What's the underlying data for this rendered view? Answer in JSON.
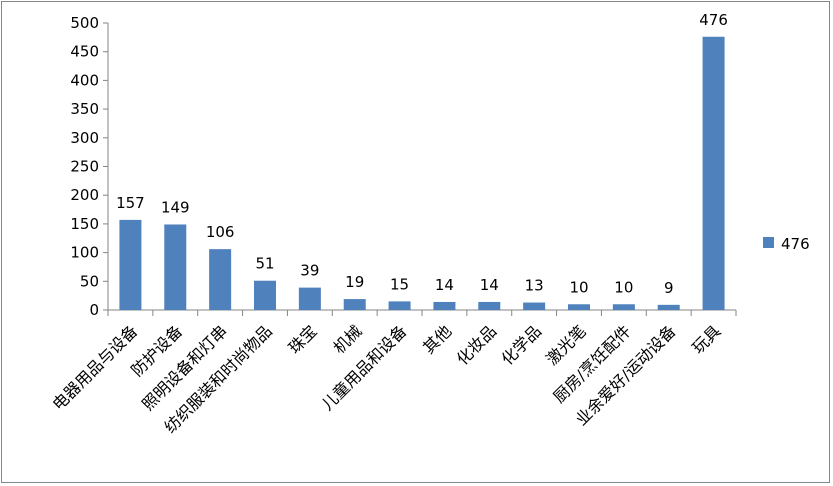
{
  "chart_data": {
    "type": "bar",
    "title": "",
    "xlabel": "",
    "ylabel": "",
    "ylim": [
      0,
      500
    ],
    "yticks": [
      0,
      50,
      100,
      150,
      200,
      250,
      300,
      350,
      400,
      450,
      500
    ],
    "grid": false,
    "legend_position": "right",
    "categories": [
      "电器用品与设备",
      "防护设备",
      "照明设备和灯串",
      "纺织服装和时尚物品",
      "珠宝",
      "机械",
      "儿童用品和设备",
      "其他",
      "化妆品",
      "化学品",
      "激光笔",
      "厨房/烹饪配件",
      "业余爱好/运动设备",
      "玩具"
    ],
    "series": [
      {
        "name": "476",
        "color": "#4F81BD",
        "values": [
          157,
          149,
          106,
          51,
          39,
          19,
          15,
          14,
          14,
          13,
          10,
          10,
          9,
          476
        ]
      }
    ]
  }
}
